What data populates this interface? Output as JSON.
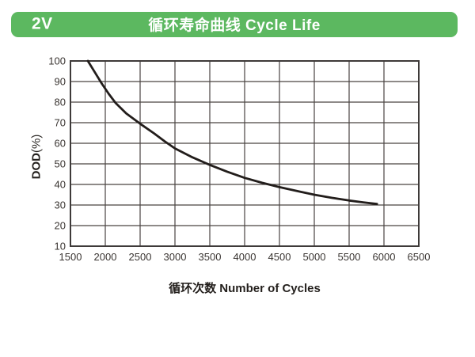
{
  "page": {
    "bg_color": "#ffffff"
  },
  "header": {
    "badge": "2V",
    "title": "循环寿命曲线 Cycle Life",
    "bg_color": "#5cb860",
    "text_color": "#ffffff"
  },
  "chart_data": {
    "type": "line",
    "title": "循环寿命曲线 Cycle Life",
    "xlabel": "循环次数 Number of Cycles",
    "ylabel": "DOD(%)",
    "ylabel_bold": "DOD",
    "ylabel_rest": "(%)",
    "xlim": [
      1500,
      6500
    ],
    "ylim": [
      10,
      100
    ],
    "x_ticks": [
      1500,
      2000,
      2500,
      3000,
      3500,
      4000,
      4500,
      5000,
      5500,
      6000,
      6500
    ],
    "y_ticks": [
      10,
      20,
      30,
      40,
      50,
      60,
      70,
      80,
      90,
      100
    ],
    "grid": true,
    "legend_position": "none",
    "colors": {
      "curve": "#221d1b",
      "grid": "#4a4442",
      "border": "#3e3a39",
      "tick_text": "#3a3532"
    },
    "series": [
      {
        "name": "cycle-life-curve",
        "points": [
          [
            1750,
            100
          ],
          [
            1850,
            94.5
          ],
          [
            1950,
            89
          ],
          [
            2050,
            84
          ],
          [
            2150,
            79.5
          ],
          [
            2300,
            74.5
          ],
          [
            2500,
            69.5
          ],
          [
            2700,
            64.8
          ],
          [
            2850,
            61
          ],
          [
            3000,
            57.5
          ],
          [
            3250,
            53.2
          ],
          [
            3500,
            49.5
          ],
          [
            3750,
            46.2
          ],
          [
            4000,
            43.2
          ],
          [
            4250,
            40.8
          ],
          [
            4500,
            38.7
          ],
          [
            4750,
            36.8
          ],
          [
            5000,
            35
          ],
          [
            5250,
            33.5
          ],
          [
            5500,
            32.2
          ],
          [
            5700,
            31.3
          ],
          [
            5900,
            30.5
          ]
        ]
      }
    ]
  }
}
